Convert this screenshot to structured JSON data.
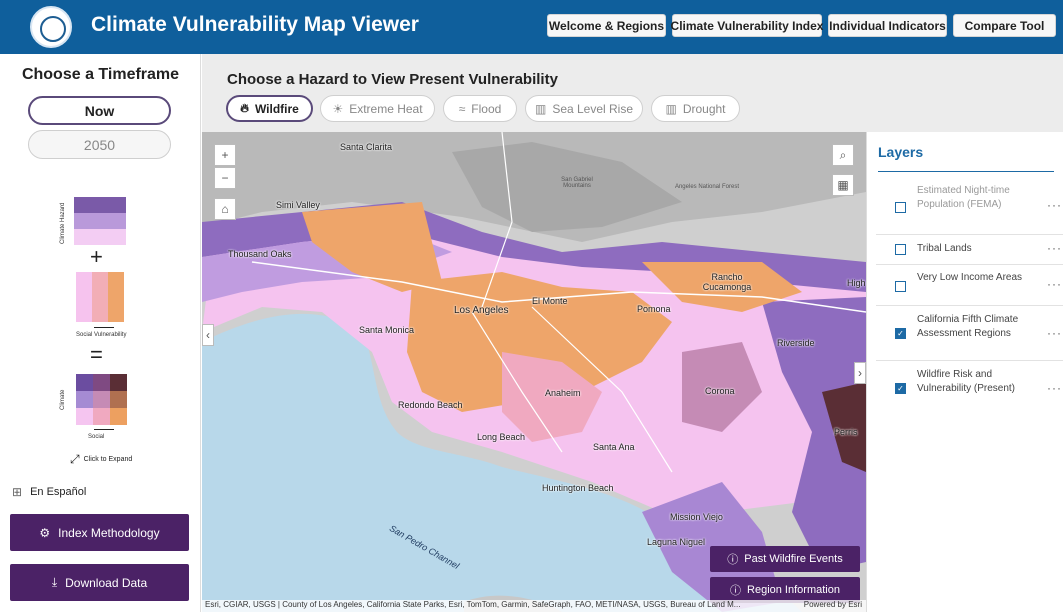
{
  "header": {
    "title": "Climate Vulnerability Map Viewer",
    "nav": [
      "Welcome & Regions",
      "Climate Vulnerability Index",
      "Individual Indicators",
      "Compare Tool"
    ]
  },
  "left_panel": {
    "title": "Choose a Timeframe",
    "timeframes": [
      "Now",
      "2050"
    ],
    "selected_timeframe": "Now",
    "legend": {
      "hazard_label": "Climate Hazard",
      "social_label": "Social Vulnerability",
      "combined_y_label": "Climate",
      "combined_x_label": "Social",
      "expand_label": "Click to Expand",
      "hazard_colors": [
        "#7a5aa8",
        "#b999da",
        "#f3cdf3"
      ],
      "social_colors": [
        "#f6c3ee",
        "#f2aeb6",
        "#eea56a"
      ],
      "combined_colors": [
        "#6b4da0",
        "#7f4a82",
        "#5a2e35",
        "#a58bd3",
        "#c58bb5",
        "#b07050",
        "#f5c5f0",
        "#f0a9c0",
        "#eda060"
      ]
    },
    "language_label": "En Español",
    "methodology_label": "Index Methodology",
    "download_label": "Download Data"
  },
  "hazard": {
    "title": "Choose a Hazard to View Present Vulnerability",
    "buttons": [
      {
        "label": "Wildfire",
        "icon": "fire-icon"
      },
      {
        "label": "Extreme Heat",
        "icon": "sun-icon"
      },
      {
        "label": "Flood",
        "icon": "flood-icon"
      },
      {
        "label": "Sea Level Rise",
        "icon": "sea-level-icon"
      },
      {
        "label": "Drought",
        "icon": "drought-icon"
      }
    ],
    "selected": "Wildfire"
  },
  "map": {
    "places": [
      "Santa Clarita",
      "Simi Valley",
      "Thousand Oaks",
      "El Monte",
      "Los Angeles",
      "Pomona",
      "Rancho Cucamonga",
      "Santa Monica",
      "Riverside",
      "Corona",
      "Redondo Beach",
      "Anaheim",
      "Long Beach",
      "Santa Ana",
      "Huntington Beach",
      "Mission Viejo",
      "Laguna Niguel",
      "Perris",
      "High",
      "San Pedro Channel",
      "San Gabriel Mountains",
      "Angeles National Forest"
    ],
    "past_events_label": "Past Wildfire Events",
    "region_info_label": "Region Information",
    "attribution": "Esri, CGIAR, USGS | County of Los Angeles, California State Parks, Esri, TomTom, Garmin, SafeGraph, FAO, METI/NASA, USGS, Bureau of Land M...",
    "powered_by": "Powered by Esri"
  },
  "layers": {
    "title": "Layers",
    "items": [
      {
        "label": "Estimated Night-time Population (FEMA)",
        "checked": false,
        "dim": true
      },
      {
        "label": "Tribal Lands",
        "checked": false,
        "dim": false
      },
      {
        "label": "Very Low Income Areas",
        "checked": false,
        "dim": false
      },
      {
        "label": "California Fifth Climate Assessment Regions",
        "checked": true,
        "dim": false
      },
      {
        "label": "Wildfire Risk and Vulnerability (Present)",
        "checked": true,
        "dim": false
      }
    ]
  }
}
